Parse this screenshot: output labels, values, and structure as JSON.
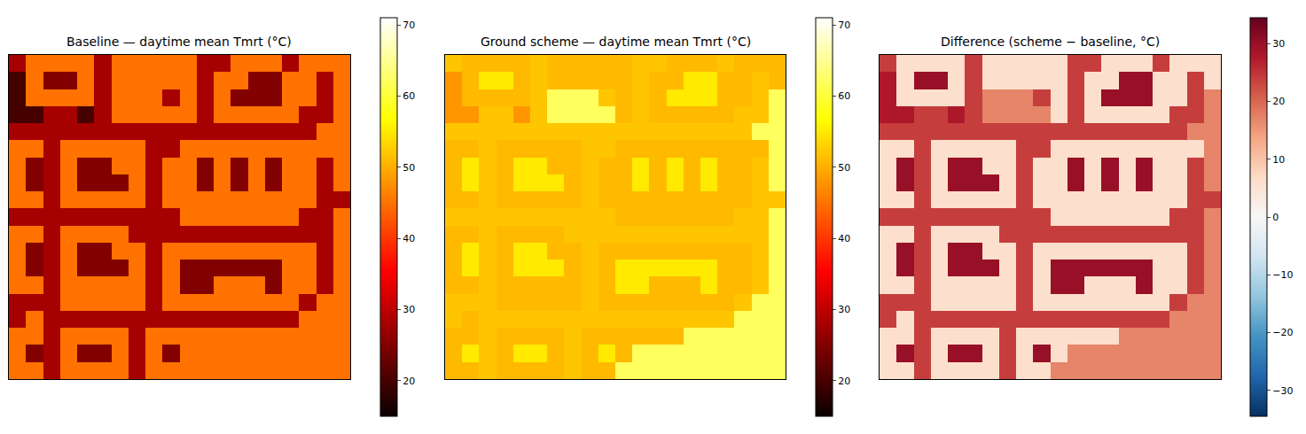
{
  "chart_data": [
    {
      "type": "heatmap",
      "title": "Baseline — daytime mean Tmrt (°C)",
      "color": "hot",
      "tick_labels": false,
      "colorbar_range": [
        15,
        71
      ],
      "colorbar_ticks": [
        20,
        30,
        40,
        50,
        60,
        70
      ],
      "cells": [
        [
          28,
          45,
          45,
          45,
          45,
          28,
          45,
          45,
          45,
          45,
          45,
          28,
          28,
          45,
          45,
          45,
          28,
          45,
          45,
          45
        ],
        [
          20,
          45,
          25,
          25,
          45,
          28,
          45,
          45,
          45,
          45,
          45,
          28,
          45,
          45,
          25,
          25,
          45,
          45,
          28,
          45
        ],
        [
          20,
          45,
          45,
          45,
          45,
          28,
          45,
          45,
          45,
          28,
          45,
          28,
          45,
          25,
          25,
          25,
          45,
          45,
          28,
          45
        ],
        [
          20,
          20,
          28,
          28,
          20,
          28,
          45,
          45,
          45,
          45,
          45,
          28,
          45,
          45,
          45,
          45,
          45,
          28,
          28,
          45
        ],
        [
          28,
          28,
          28,
          28,
          28,
          28,
          28,
          28,
          28,
          28,
          28,
          28,
          28,
          28,
          28,
          28,
          28,
          28,
          45,
          45
        ],
        [
          45,
          45,
          28,
          45,
          45,
          45,
          45,
          45,
          28,
          28,
          45,
          45,
          45,
          45,
          45,
          45,
          45,
          45,
          45,
          45
        ],
        [
          45,
          25,
          28,
          45,
          25,
          25,
          45,
          45,
          28,
          45,
          45,
          25,
          45,
          25,
          45,
          25,
          45,
          45,
          28,
          45
        ],
        [
          45,
          25,
          28,
          45,
          25,
          25,
          25,
          45,
          28,
          45,
          45,
          25,
          45,
          25,
          45,
          25,
          45,
          45,
          28,
          45
        ],
        [
          45,
          45,
          28,
          45,
          45,
          45,
          45,
          45,
          28,
          45,
          45,
          45,
          45,
          45,
          45,
          45,
          45,
          45,
          28,
          28
        ],
        [
          28,
          28,
          28,
          28,
          28,
          28,
          28,
          28,
          28,
          28,
          45,
          45,
          45,
          45,
          45,
          45,
          45,
          28,
          28,
          45
        ],
        [
          45,
          45,
          28,
          45,
          45,
          45,
          45,
          28,
          28,
          28,
          28,
          28,
          28,
          28,
          28,
          28,
          28,
          28,
          28,
          45
        ],
        [
          45,
          25,
          28,
          45,
          25,
          25,
          45,
          45,
          28,
          45,
          45,
          45,
          45,
          45,
          45,
          45,
          45,
          45,
          28,
          45
        ],
        [
          45,
          25,
          28,
          45,
          25,
          25,
          25,
          45,
          28,
          45,
          25,
          25,
          25,
          25,
          25,
          25,
          45,
          45,
          28,
          45
        ],
        [
          45,
          45,
          28,
          45,
          45,
          45,
          45,
          45,
          28,
          45,
          25,
          25,
          45,
          45,
          45,
          25,
          45,
          45,
          28,
          45
        ],
        [
          28,
          28,
          28,
          45,
          45,
          45,
          45,
          45,
          28,
          45,
          45,
          45,
          45,
          45,
          45,
          45,
          45,
          28,
          45,
          45
        ],
        [
          28,
          45,
          28,
          28,
          28,
          28,
          28,
          28,
          28,
          28,
          28,
          28,
          28,
          28,
          28,
          28,
          28,
          45,
          45,
          45
        ],
        [
          45,
          45,
          28,
          45,
          45,
          45,
          45,
          28,
          45,
          45,
          45,
          45,
          45,
          45,
          45,
          45,
          45,
          45,
          45,
          45
        ],
        [
          45,
          25,
          28,
          45,
          25,
          25,
          45,
          28,
          45,
          25,
          45,
          45,
          45,
          45,
          45,
          45,
          45,
          45,
          45,
          45
        ],
        [
          45,
          45,
          28,
          45,
          45,
          45,
          45,
          28,
          45,
          45,
          45,
          45,
          45,
          45,
          45,
          45,
          45,
          45,
          45,
          45
        ]
      ]
    },
    {
      "type": "heatmap",
      "title": "Ground scheme — daytime mean Tmrt (°C)",
      "color": "hot",
      "tick_labels": false,
      "colorbar_range": [
        15,
        71
      ],
      "colorbar_ticks": [
        20,
        30,
        40,
        50,
        60,
        70
      ],
      "cells": [
        [
          52,
          51,
          51,
          51,
          51,
          52,
          51,
          51,
          51,
          51,
          51,
          52,
          52,
          51,
          51,
          51,
          52,
          51,
          51,
          51
        ],
        [
          48,
          51,
          55,
          55,
          51,
          52,
          51,
          51,
          51,
          51,
          51,
          52,
          51,
          51,
          55,
          55,
          51,
          51,
          52,
          51
        ],
        [
          48,
          51,
          51,
          51,
          51,
          52,
          62,
          62,
          62,
          52,
          51,
          52,
          51,
          55,
          55,
          55,
          51,
          51,
          52,
          62
        ],
        [
          48,
          48,
          52,
          52,
          48,
          52,
          62,
          62,
          62,
          62,
          51,
          52,
          51,
          51,
          51,
          51,
          51,
          52,
          52,
          62
        ],
        [
          52,
          52,
          52,
          52,
          52,
          52,
          52,
          52,
          52,
          52,
          52,
          52,
          52,
          52,
          52,
          52,
          52,
          52,
          62,
          62
        ],
        [
          51,
          51,
          52,
          51,
          51,
          51,
          51,
          51,
          52,
          52,
          51,
          51,
          51,
          51,
          51,
          51,
          51,
          51,
          51,
          62
        ],
        [
          51,
          55,
          52,
          51,
          55,
          55,
          51,
          51,
          52,
          51,
          51,
          55,
          51,
          55,
          51,
          55,
          51,
          51,
          52,
          62
        ],
        [
          51,
          55,
          52,
          51,
          55,
          55,
          55,
          51,
          52,
          51,
          51,
          55,
          51,
          55,
          51,
          55,
          51,
          51,
          52,
          62
        ],
        [
          51,
          51,
          52,
          51,
          51,
          51,
          51,
          51,
          52,
          51,
          51,
          51,
          51,
          51,
          51,
          51,
          51,
          51,
          52,
          52
        ],
        [
          52,
          52,
          52,
          52,
          52,
          52,
          52,
          52,
          52,
          52,
          51,
          51,
          51,
          51,
          51,
          51,
          51,
          52,
          52,
          62
        ],
        [
          51,
          51,
          52,
          51,
          51,
          51,
          51,
          52,
          52,
          52,
          52,
          52,
          52,
          52,
          52,
          52,
          52,
          52,
          52,
          62
        ],
        [
          51,
          55,
          52,
          51,
          55,
          55,
          51,
          51,
          52,
          51,
          51,
          51,
          51,
          51,
          51,
          51,
          51,
          51,
          52,
          62
        ],
        [
          51,
          55,
          52,
          51,
          55,
          55,
          55,
          51,
          52,
          51,
          55,
          55,
          55,
          55,
          55,
          55,
          51,
          51,
          52,
          62
        ],
        [
          51,
          51,
          52,
          51,
          51,
          51,
          51,
          51,
          52,
          51,
          55,
          55,
          51,
          51,
          51,
          55,
          51,
          51,
          52,
          62
        ],
        [
          52,
          52,
          52,
          51,
          51,
          51,
          51,
          51,
          52,
          51,
          51,
          51,
          51,
          51,
          51,
          51,
          51,
          52,
          62,
          62
        ],
        [
          52,
          51,
          52,
          52,
          52,
          52,
          52,
          52,
          52,
          52,
          52,
          52,
          52,
          52,
          52,
          52,
          52,
          62,
          62,
          62
        ],
        [
          51,
          51,
          52,
          51,
          51,
          51,
          51,
          52,
          51,
          51,
          51,
          51,
          51,
          51,
          62,
          62,
          62,
          62,
          62,
          62
        ],
        [
          51,
          55,
          52,
          51,
          55,
          55,
          51,
          52,
          51,
          55,
          51,
          62,
          62,
          62,
          62,
          62,
          62,
          62,
          62,
          62
        ],
        [
          51,
          51,
          52,
          51,
          51,
          51,
          51,
          52,
          51,
          51,
          62,
          62,
          62,
          62,
          62,
          62,
          62,
          62,
          62,
          62
        ]
      ]
    },
    {
      "type": "heatmap",
      "title": "Difference (scheme − baseline, °C)",
      "color": "RdBu_r",
      "tick_labels": false,
      "colorbar_range": [
        -34.5,
        34.5
      ],
      "colorbar_ticks": [
        {
          "value": -30,
          "label": "−30"
        },
        {
          "value": -20,
          "label": "−20"
        },
        {
          "value": -10,
          "label": "−10"
        },
        0,
        10,
        20,
        30
      ],
      "cells": [
        [
          24,
          6,
          6,
          6,
          6,
          24,
          6,
          6,
          6,
          6,
          6,
          24,
          24,
          6,
          6,
          6,
          24,
          6,
          6,
          6
        ],
        [
          28,
          6,
          30,
          30,
          6,
          24,
          6,
          6,
          6,
          6,
          6,
          24,
          6,
          6,
          30,
          30,
          6,
          6,
          24,
          6
        ],
        [
          28,
          6,
          6,
          6,
          6,
          24,
          17,
          17,
          17,
          24,
          6,
          24,
          6,
          30,
          30,
          30,
          6,
          6,
          24,
          17
        ],
        [
          28,
          28,
          24,
          24,
          28,
          24,
          17,
          17,
          17,
          17,
          6,
          24,
          6,
          6,
          6,
          6,
          6,
          24,
          24,
          17
        ],
        [
          24,
          24,
          24,
          24,
          24,
          24,
          24,
          24,
          24,
          24,
          24,
          24,
          24,
          24,
          24,
          24,
          24,
          24,
          17,
          17
        ],
        [
          6,
          6,
          24,
          6,
          6,
          6,
          6,
          6,
          24,
          24,
          6,
          6,
          6,
          6,
          6,
          6,
          6,
          6,
          6,
          17
        ],
        [
          6,
          30,
          24,
          6,
          30,
          30,
          6,
          6,
          24,
          6,
          6,
          30,
          6,
          30,
          6,
          30,
          6,
          6,
          24,
          17
        ],
        [
          6,
          30,
          24,
          6,
          30,
          30,
          30,
          6,
          24,
          6,
          6,
          30,
          6,
          30,
          6,
          30,
          6,
          6,
          24,
          17
        ],
        [
          6,
          6,
          24,
          6,
          6,
          6,
          6,
          6,
          24,
          6,
          6,
          6,
          6,
          6,
          6,
          6,
          6,
          6,
          24,
          24
        ],
        [
          24,
          24,
          24,
          24,
          24,
          24,
          24,
          24,
          24,
          24,
          6,
          6,
          6,
          6,
          6,
          6,
          6,
          24,
          24,
          17
        ],
        [
          6,
          6,
          24,
          6,
          6,
          6,
          6,
          24,
          24,
          24,
          24,
          24,
          24,
          24,
          24,
          24,
          24,
          24,
          24,
          17
        ],
        [
          6,
          30,
          24,
          6,
          30,
          30,
          6,
          6,
          24,
          6,
          6,
          6,
          6,
          6,
          6,
          6,
          6,
          6,
          24,
          17
        ],
        [
          6,
          30,
          24,
          6,
          30,
          30,
          30,
          6,
          24,
          6,
          30,
          30,
          30,
          30,
          30,
          30,
          6,
          6,
          24,
          17
        ],
        [
          6,
          6,
          24,
          6,
          6,
          6,
          6,
          6,
          24,
          6,
          30,
          30,
          6,
          6,
          6,
          30,
          6,
          6,
          24,
          17
        ],
        [
          24,
          24,
          24,
          6,
          6,
          6,
          6,
          6,
          24,
          6,
          6,
          6,
          6,
          6,
          6,
          6,
          6,
          24,
          17,
          17
        ],
        [
          24,
          6,
          24,
          24,
          24,
          24,
          24,
          24,
          24,
          24,
          24,
          24,
          24,
          24,
          24,
          24,
          24,
          17,
          17,
          17
        ],
        [
          6,
          6,
          24,
          6,
          6,
          6,
          6,
          24,
          6,
          6,
          6,
          6,
          6,
          6,
          17,
          17,
          17,
          17,
          17,
          17
        ],
        [
          6,
          30,
          24,
          6,
          30,
          30,
          6,
          24,
          6,
          30,
          6,
          17,
          17,
          17,
          17,
          17,
          17,
          17,
          17,
          17
        ],
        [
          6,
          6,
          24,
          6,
          6,
          6,
          6,
          24,
          6,
          6,
          17,
          17,
          17,
          17,
          17,
          17,
          17,
          17,
          17,
          17
        ]
      ]
    }
  ]
}
